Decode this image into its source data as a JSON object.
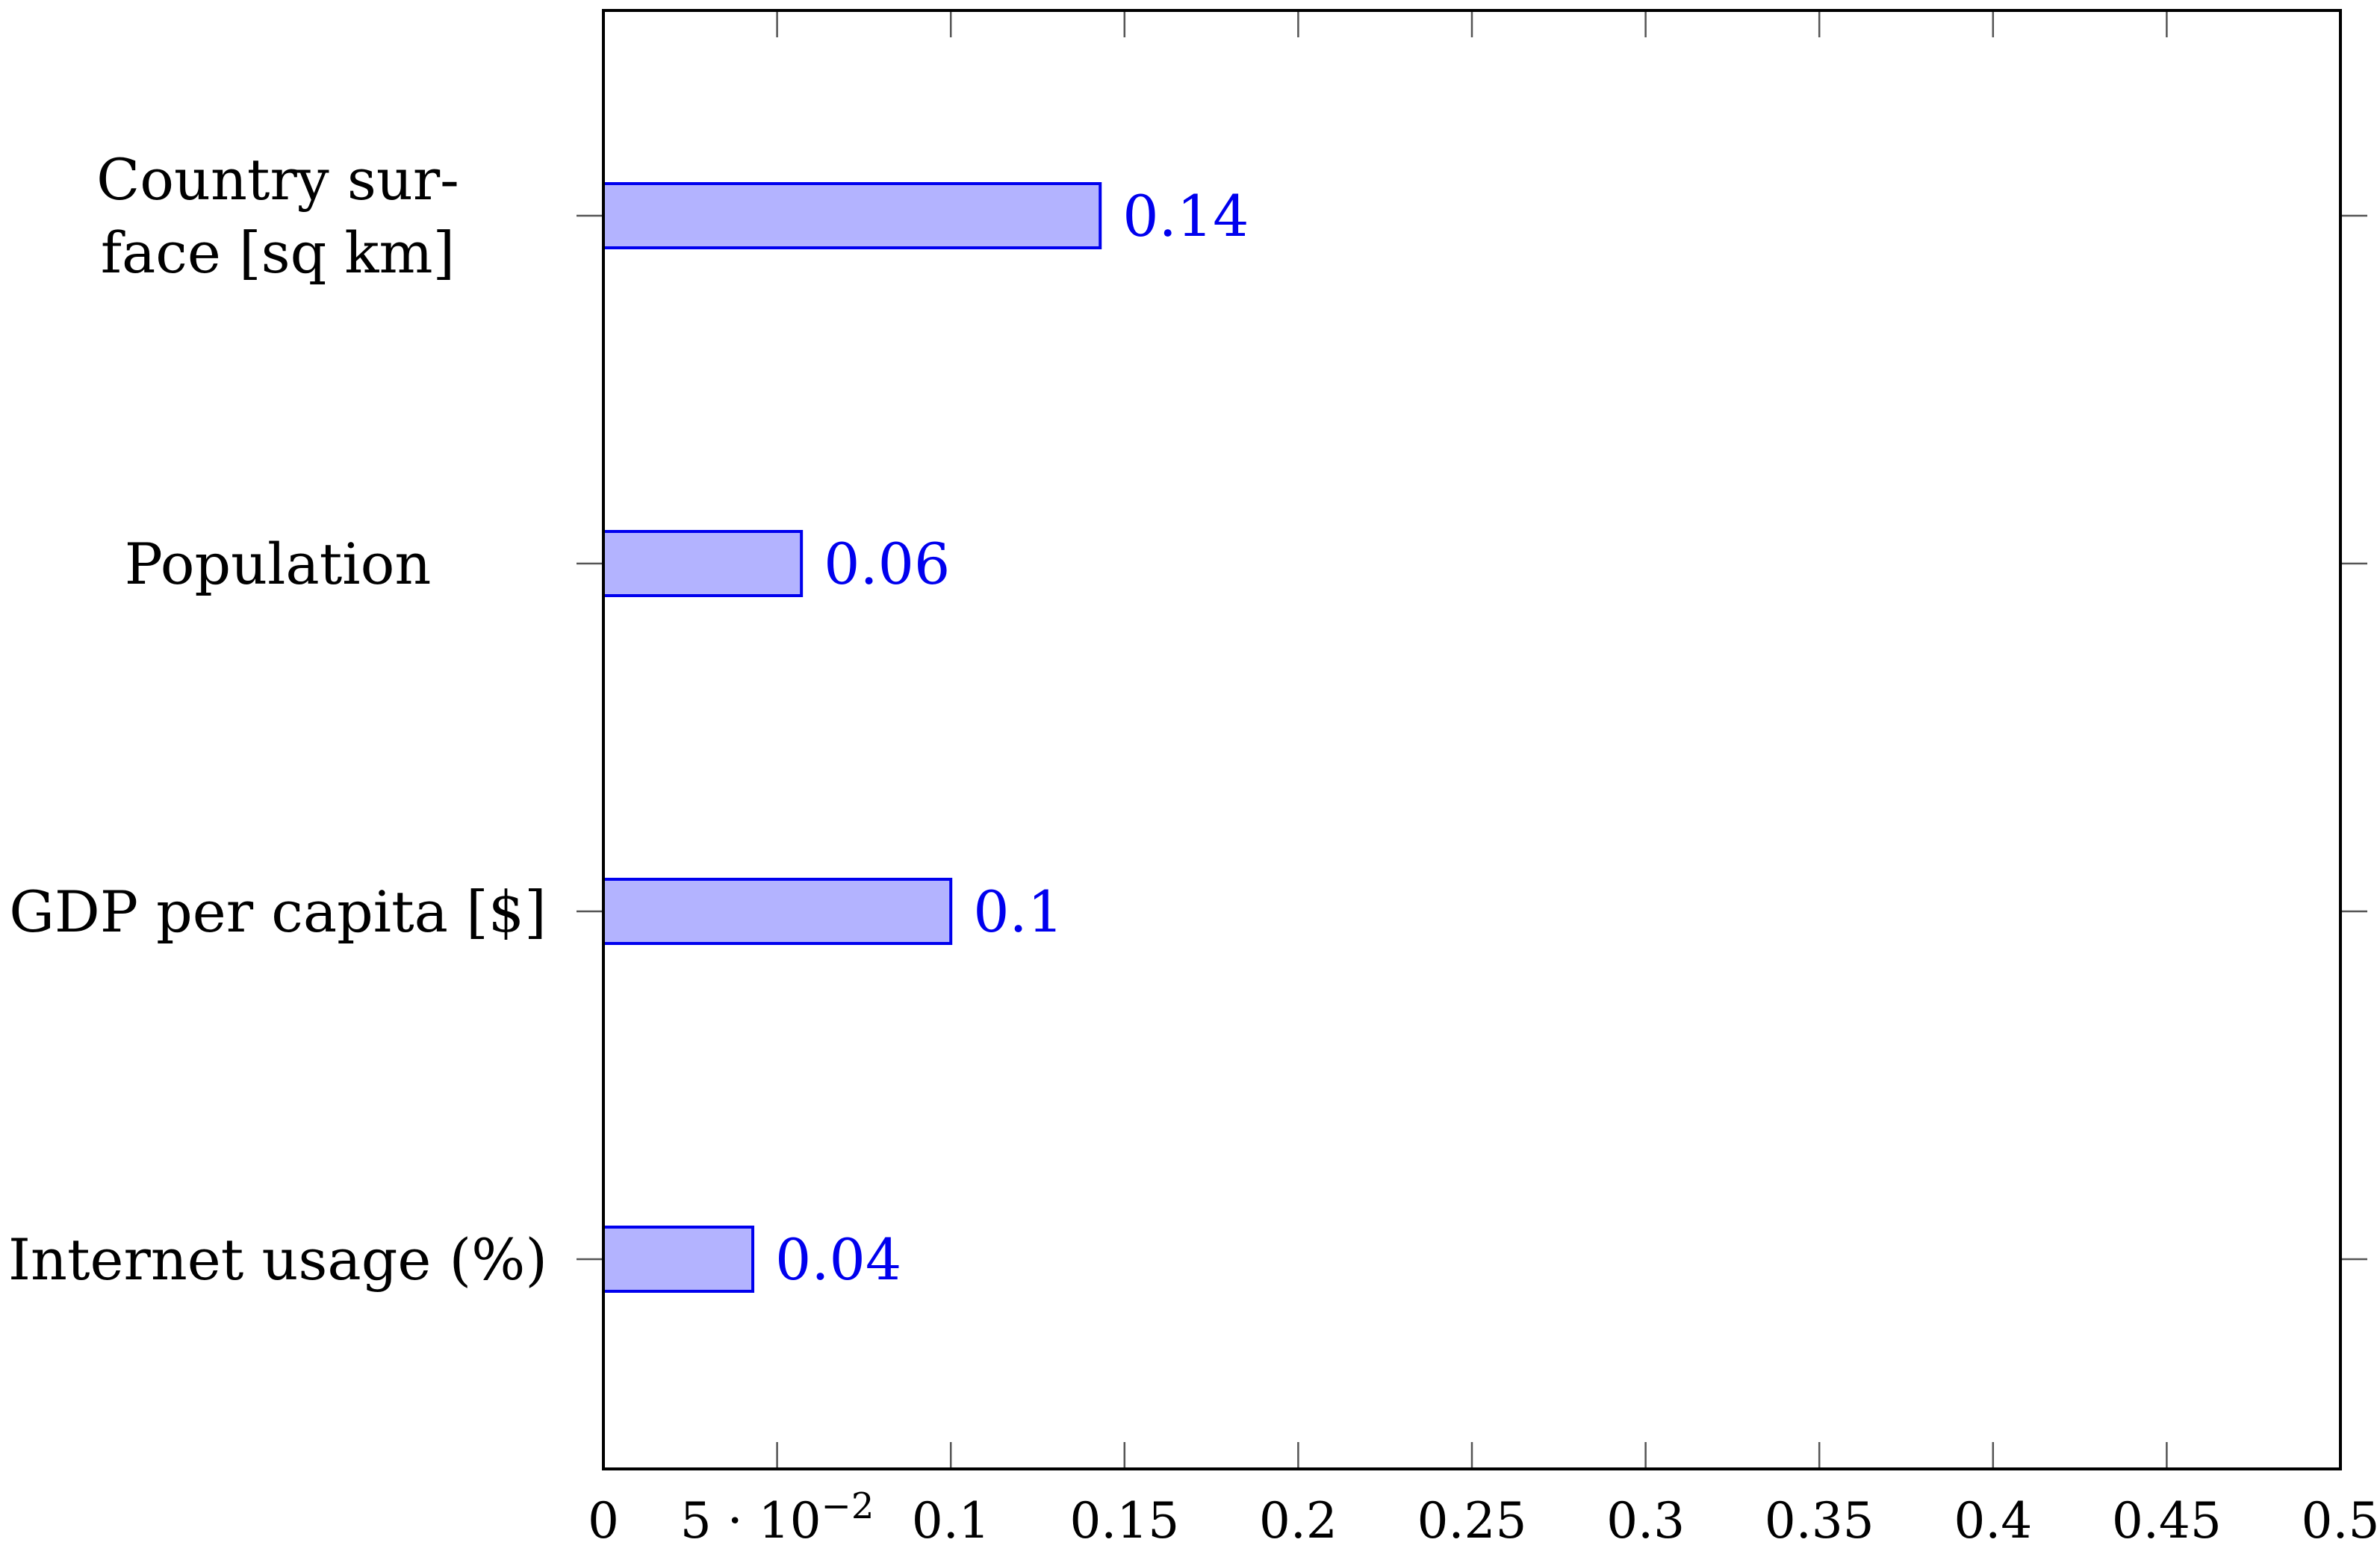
{
  "chart_data": {
    "type": "bar",
    "orientation": "horizontal",
    "categories": [
      "Internet usage (%)",
      "GDP per capita [$]",
      "Population",
      "Country surface [sq km]"
    ],
    "category_lines": [
      [
        "Internet usage (%)"
      ],
      [
        "GDP per capita [$]"
      ],
      [
        "Population"
      ],
      [
        "Country sur-",
        "face [sq km]"
      ]
    ],
    "values": [
      0.043,
      0.1,
      0.057,
      0.143
    ],
    "data_labels": [
      "0.04",
      "0.1",
      "0.06",
      "0.14"
    ],
    "xlim": [
      0,
      0.5
    ],
    "xticks": [
      0,
      0.05,
      0.1,
      0.15,
      0.2,
      0.25,
      0.3,
      0.35,
      0.4,
      0.45,
      0.5
    ],
    "xtick_labels": [
      "0",
      "5 · 10",
      "0.1",
      "0.15",
      "0.2",
      "0.25",
      "0.3",
      "0.35",
      "0.4",
      "0.45",
      "0.5"
    ],
    "xtick_superscript": {
      "index": 1,
      "text": "−2"
    },
    "title": "",
    "xlabel": "",
    "ylabel": "",
    "grid": false,
    "bar_fill": "#b3b3ff",
    "bar_stroke": "#0000ee",
    "label_color": "#0000ee"
  }
}
